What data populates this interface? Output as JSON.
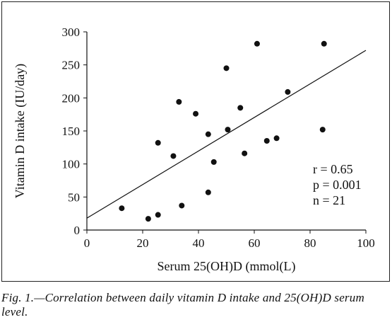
{
  "chart_data": {
    "type": "scatter",
    "title": "",
    "xlabel": "Serum 25(OH)D (mmol(L)",
    "ylabel": "Vitamin D intake (IU/day)",
    "xlim": [
      0,
      100
    ],
    "ylim": [
      0,
      300
    ],
    "x_ticks": [
      "0",
      "20",
      "40",
      "60",
      "80",
      "100"
    ],
    "y_ticks": [
      "0",
      "50",
      "100",
      "150",
      "200",
      "250",
      "300"
    ],
    "grid": false,
    "legend": "none",
    "points": [
      {
        "x": 12.5,
        "y": 33
      },
      {
        "x": 22,
        "y": 17
      },
      {
        "x": 25.5,
        "y": 23
      },
      {
        "x": 25.5,
        "y": 132
      },
      {
        "x": 31,
        "y": 112
      },
      {
        "x": 33,
        "y": 194
      },
      {
        "x": 34,
        "y": 37
      },
      {
        "x": 39,
        "y": 176
      },
      {
        "x": 43.5,
        "y": 57
      },
      {
        "x": 43.5,
        "y": 145
      },
      {
        "x": 45.5,
        "y": 103
      },
      {
        "x": 50,
        "y": 245
      },
      {
        "x": 50.5,
        "y": 152
      },
      {
        "x": 55,
        "y": 185
      },
      {
        "x": 56.5,
        "y": 116
      },
      {
        "x": 61,
        "y": 282
      },
      {
        "x": 64.5,
        "y": 135
      },
      {
        "x": 68,
        "y": 139
      },
      {
        "x": 72,
        "y": 209
      },
      {
        "x": 84.5,
        "y": 152
      },
      {
        "x": 85,
        "y": 282
      }
    ],
    "trendline": {
      "x": [
        0,
        100
      ],
      "y": [
        18,
        272
      ]
    },
    "annotations": [
      "r = 0.65",
      "p = 0.001",
      "n = 21"
    ],
    "marker_color": "#111111"
  },
  "caption": "Fig. 1.—Correlation between daily vitamin D intake and 25(OH)D serum level."
}
